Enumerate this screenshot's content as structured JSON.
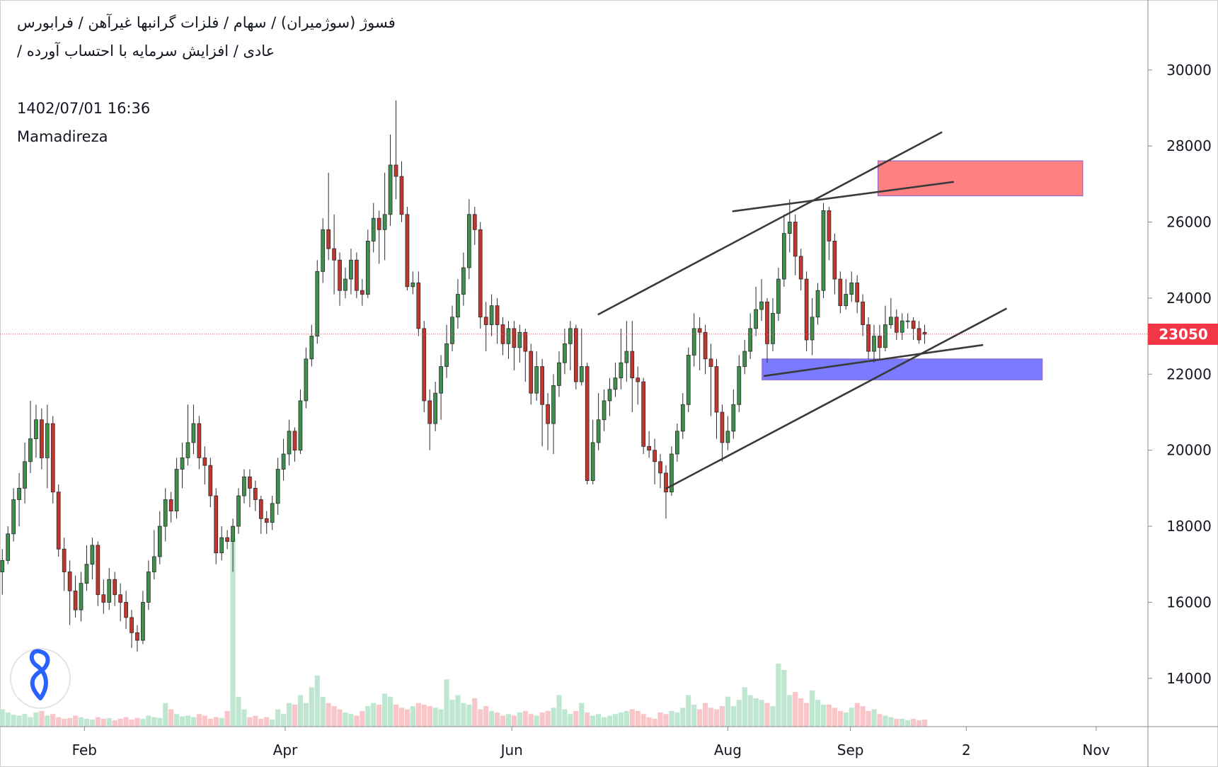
{
  "chart_data": {
    "type": "candlestick",
    "title": "فسوژ (سوژمیران) / سهام / فلزات گرانبها غیرآهن / فرابورس",
    "subtitle": "عادی / افزایش سرمایه با احتساب آورده /",
    "annotations": [
      "1402/07/01 16:36",
      "Mamadireza"
    ],
    "open": [
      16800,
      17100,
      17800,
      18700,
      19000,
      19700,
      20300,
      20800,
      19800,
      20700,
      18900,
      17400,
      16800,
      16300,
      15800,
      16500,
      17000,
      17500,
      16200,
      16000,
      16600,
      16200,
      16000,
      15600,
      15200,
      15000,
      16000,
      16800,
      17200,
      18000,
      18700,
      18400,
      19500,
      19800,
      20200,
      20700,
      19800,
      19600,
      18800,
      17300,
      17700,
      17600,
      18000,
      18800,
      19300,
      19000,
      18700,
      18200,
      18100,
      18600,
      19500,
      19900,
      20500,
      20000,
      21300,
      22400,
      23000,
      24700,
      25800,
      25300,
      25000,
      24200,
      24500,
      25000,
      24200,
      24100,
      25500,
      26100,
      25800,
      26200,
      27500,
      27200,
      26200,
      24300,
      24400,
      23200,
      21300,
      20700,
      21500,
      22200,
      22800,
      23500,
      24100,
      24800,
      26200,
      25800,
      23500,
      23300,
      23800,
      23300,
      22800,
      23200,
      22700,
      23100,
      22600,
      21500,
      22200,
      21200,
      20700,
      21700,
      22300,
      22800,
      23200,
      21800,
      22200,
      19200,
      20200,
      20800,
      21300,
      21600,
      21900,
      22300,
      22600,
      21900,
      21800,
      20100,
      20000,
      19700,
      19400,
      18900,
      19900,
      20500,
      21200,
      22500,
      23200,
      23100,
      22400,
      22200,
      21000,
      20200,
      20500,
      21200,
      22200,
      22600,
      23200,
      23700,
      23900,
      22800,
      23600,
      24500,
      25700,
      26000,
      25100,
      24500,
      22900,
      23500,
      24200,
      26300,
      25500,
      24500,
      23800,
      24100,
      24400,
      23900,
      23300,
      22600,
      23000,
      22700,
      23300,
      23500,
      23100,
      23400,
      23400,
      23200,
      23100
    ],
    "high": [
      17400,
      18000,
      19000,
      19400,
      20200,
      21300,
      21200,
      21100,
      21200,
      20900,
      19100,
      17700,
      17100,
      16700,
      16800,
      17500,
      17700,
      17600,
      16600,
      16900,
      16800,
      16500,
      16300,
      15800,
      15400,
      16300,
      17100,
      17900,
      18400,
      19000,
      18900,
      19800,
      20200,
      21200,
      21200,
      20900,
      20100,
      19800,
      19000,
      18000,
      17900,
      18200,
      19000,
      19500,
      19500,
      19200,
      18800,
      18400,
      18800,
      19800,
      20300,
      20800,
      20600,
      21600,
      22700,
      23300,
      25000,
      26100,
      27300,
      26200,
      25200,
      24800,
      25300,
      25200,
      24500,
      25800,
      26500,
      26300,
      27300,
      28300,
      29200,
      27600,
      26400,
      24700,
      24700,
      23400,
      21600,
      21800,
      22500,
      23300,
      23800,
      24500,
      25200,
      26600,
      26400,
      26000,
      23900,
      24100,
      24000,
      23500,
      23400,
      23400,
      23300,
      23200,
      22800,
      22600,
      22400,
      21500,
      22000,
      22600,
      23200,
      23400,
      23300,
      23200,
      22300,
      20800,
      21500,
      21600,
      21900,
      22300,
      23200,
      23400,
      23400,
      22200,
      21900,
      20500,
      20300,
      19900,
      19600,
      20100,
      20700,
      21500,
      22700,
      23600,
      23500,
      23300,
      22800,
      22400,
      21200,
      20900,
      21600,
      22500,
      22900,
      23600,
      24300,
      24500,
      24000,
      24000,
      24800,
      26200,
      26600,
      26200,
      25300,
      24700,
      24000,
      24400,
      26500,
      26400,
      25700,
      24700,
      24500,
      24700,
      24600,
      24100,
      23500,
      23300,
      23300,
      23800,
      24000,
      23700,
      23600,
      23600,
      23500,
      23400,
      23300
    ],
    "low": [
      16200,
      17000,
      17600,
      18000,
      18600,
      19400,
      19800,
      19500,
      19000,
      18600,
      17200,
      16300,
      15400,
      15600,
      15500,
      16300,
      16600,
      15900,
      15700,
      15800,
      15900,
      15500,
      15300,
      14800,
      14700,
      14900,
      15800,
      16600,
      17000,
      17600,
      18100,
      18200,
      19000,
      19600,
      19900,
      19500,
      19100,
      18500,
      17000,
      17100,
      17400,
      16800,
      17800,
      18600,
      18500,
      18400,
      17800,
      17800,
      17900,
      18300,
      19200,
      19600,
      19700,
      19900,
      21100,
      22200,
      22800,
      24400,
      25000,
      24100,
      23800,
      24000,
      24100,
      24000,
      23800,
      24000,
      25200,
      24900,
      25000,
      25900,
      26600,
      26000,
      24200,
      24100,
      23000,
      21000,
      20000,
      20500,
      20800,
      21900,
      22600,
      23200,
      23800,
      24500,
      25400,
      23200,
      22600,
      23000,
      22800,
      22500,
      22400,
      22100,
      22300,
      21800,
      21200,
      21300,
      20100,
      20000,
      19900,
      21400,
      22000,
      22100,
      21600,
      21700,
      19100,
      19100,
      20000,
      20500,
      20900,
      21400,
      21600,
      21800,
      21000,
      21200,
      19900,
      19800,
      19100,
      19000,
      18200,
      18800,
      19700,
      20300,
      21000,
      22200,
      22100,
      22000,
      20900,
      20300,
      19700,
      20000,
      20300,
      21000,
      22000,
      22400,
      23000,
      23400,
      22300,
      22600,
      23400,
      24300,
      25200,
      24600,
      24200,
      22600,
      22500,
      23300,
      24000,
      25000,
      24100,
      23600,
      23700,
      23900,
      23600,
      23000,
      22400,
      22300,
      22400,
      22600,
      23200,
      22900,
      22900,
      23200,
      22900,
      22800,
      22800
    ],
    "close": [
      17100,
      17800,
      18700,
      19000,
      19700,
      20300,
      20800,
      19800,
      20700,
      18900,
      17400,
      16800,
      16300,
      15800,
      16500,
      17000,
      17500,
      16200,
      16000,
      16600,
      16200,
      16000,
      15600,
      15200,
      15000,
      16000,
      16800,
      17200,
      18000,
      18700,
      18400,
      19500,
      19800,
      20200,
      20700,
      19800,
      19600,
      18800,
      17300,
      17700,
      17600,
      18000,
      18800,
      19300,
      19000,
      18700,
      18200,
      18100,
      18600,
      19500,
      19900,
      20500,
      20000,
      21300,
      22400,
      23000,
      24700,
      25800,
      25300,
      25000,
      24200,
      24500,
      25000,
      24200,
      24100,
      25500,
      26100,
      25800,
      26200,
      27500,
      27200,
      26200,
      24300,
      24400,
      23200,
      21300,
      20700,
      21500,
      22200,
      22800,
      23500,
      24100,
      24800,
      26200,
      25800,
      23500,
      23300,
      23800,
      23300,
      22800,
      23200,
      22700,
      23100,
      22600,
      21500,
      22200,
      21200,
      20700,
      21700,
      22300,
      22800,
      23200,
      21800,
      22200,
      19200,
      20200,
      20800,
      21300,
      21600,
      21900,
      22300,
      22600,
      21900,
      21800,
      20100,
      20000,
      19700,
      19400,
      18900,
      19900,
      20500,
      21200,
      22500,
      23200,
      23100,
      22400,
      22200,
      21000,
      20200,
      20500,
      21200,
      22200,
      22600,
      23200,
      23700,
      23900,
      22800,
      23600,
      24500,
      25700,
      26000,
      25100,
      24500,
      22900,
      23500,
      24200,
      26300,
      25500,
      24500,
      23800,
      24100,
      24400,
      23900,
      23300,
      22600,
      23000,
      22700,
      23300,
      23500,
      23100,
      23400,
      23400,
      23200,
      22900,
      23050
    ],
    "volume": [
      22,
      18,
      15,
      14,
      16,
      12,
      18,
      20,
      14,
      16,
      12,
      10,
      11,
      14,
      12,
      10,
      9,
      12,
      10,
      11,
      8,
      10,
      12,
      9,
      11,
      10,
      14,
      12,
      11,
      30,
      22,
      16,
      13,
      14,
      12,
      16,
      14,
      10,
      12,
      11,
      20,
      240,
      38,
      22,
      12,
      14,
      10,
      12,
      9,
      22,
      16,
      30,
      28,
      40,
      30,
      50,
      65,
      38,
      30,
      26,
      22,
      18,
      16,
      14,
      20,
      26,
      30,
      28,
      42,
      38,
      28,
      24,
      22,
      26,
      30,
      28,
      26,
      24,
      22,
      60,
      34,
      40,
      30,
      28,
      36,
      22,
      26,
      20,
      18,
      14,
      16,
      14,
      18,
      20,
      16,
      14,
      18,
      20,
      24,
      40,
      22,
      16,
      20,
      30,
      18,
      14,
      16,
      12,
      14,
      16,
      18,
      20,
      22,
      20,
      16,
      12,
      10,
      18,
      16,
      20,
      18,
      24,
      40,
      28,
      22,
      30,
      24,
      22,
      26,
      38,
      26,
      34,
      50,
      40,
      36,
      34,
      30,
      26,
      80,
      72,
      40,
      44,
      36,
      30,
      46,
      34,
      28,
      28,
      24,
      20,
      18,
      24,
      30,
      26,
      20,
      22,
      16,
      14,
      12,
      10,
      10,
      8,
      10,
      8,
      9
    ],
    "up_color": "#3f8f4e",
    "down_color": "#c2362f",
    "volume_up_color": "#bfe6d1",
    "volume_down_color": "#f8c5c8",
    "last_price_color": "#f23645",
    "xlim": [
      -0.41,
      203.7
    ],
    "xticks": [
      {
        "value": 14.6,
        "label": "Feb"
      },
      {
        "value": 50.3,
        "label": "Apr"
      },
      {
        "value": 90.6,
        "label": "Jun"
      },
      {
        "value": 129,
        "label": "Aug"
      },
      {
        "value": 150.8,
        "label": "Sep"
      },
      {
        "value": 171.4,
        "label": "2"
      },
      {
        "value": 194.5,
        "label": "Nov"
      }
    ],
    "ylim": [
      12730,
      31840
    ],
    "yticks": [
      14000,
      16000,
      18000,
      20000,
      22000,
      24000,
      26000,
      28000,
      30000
    ],
    "trendlines": [
      {
        "x": [
          105.9,
          167.1
        ],
        "y": [
          23565,
          28366
        ]
      },
      {
        "x": [
          129.8,
          169.2
        ],
        "y": [
          26282,
          27058
        ]
      },
      {
        "x": [
          118,
          178.6
        ],
        "y": [
          18988,
          23728
        ]
      },
      {
        "x": [
          135.4,
          174.4
        ],
        "y": [
          21951,
          22768
        ]
      }
    ],
    "trendline_color": "#3a3a3a",
    "zones": [
      {
        "x": [
          155.7,
          192.1
        ],
        "y": [
          26690,
          27610
        ],
        "color": "#ff8080"
      },
      {
        "x": [
          135.1,
          184.9
        ],
        "y": [
          21850,
          22400
        ],
        "color": "#7b7bff"
      }
    ]
  }
}
